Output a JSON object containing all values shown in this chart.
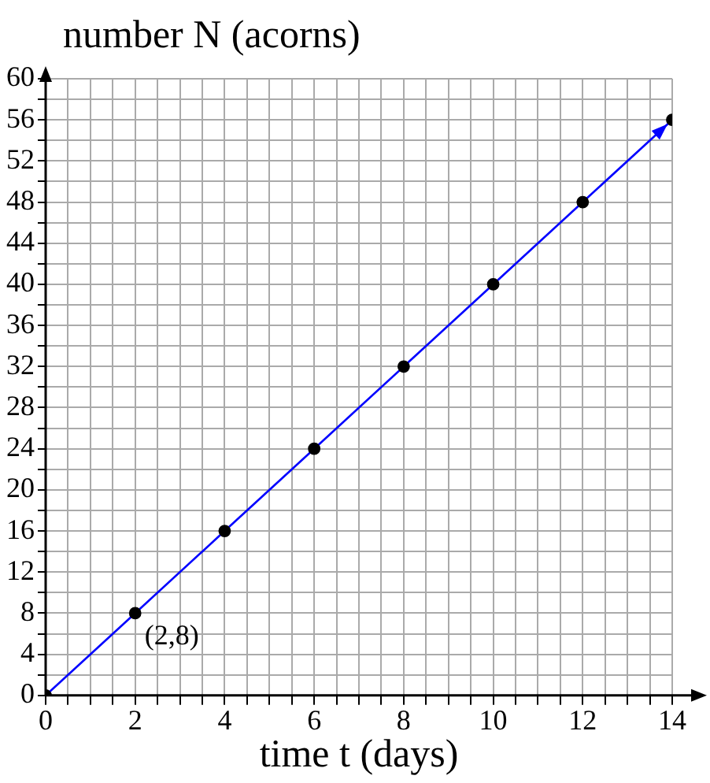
{
  "chart_data": {
    "type": "line",
    "ylabel": "number N (acorns)",
    "xlabel": "time t (days)",
    "x": [
      0,
      2,
      4,
      6,
      8,
      10,
      12,
      14
    ],
    "series": [
      {
        "color": "#0000ff",
        "values": [
          0,
          8,
          16,
          24,
          32,
          40,
          48,
          56
        ]
      }
    ],
    "xlim": [
      0,
      14
    ],
    "ylim": [
      0,
      60
    ],
    "xticks": [
      0,
      {
        "value": 0.5,
        "label": null
      },
      {
        "value": 1,
        "label": null
      },
      {
        "value": 1.5,
        "label": null
      },
      2,
      {
        "value": 2.5,
        "label": null
      },
      {
        "value": 3,
        "label": null
      },
      {
        "value": 3.5,
        "label": null
      },
      4,
      {
        "value": 4.5,
        "label": null
      },
      {
        "value": 5,
        "label": null
      },
      {
        "value": 5.5,
        "label": null
      },
      6,
      {
        "value": 6.5,
        "label": null
      },
      {
        "value": 7,
        "label": null
      },
      {
        "value": 7.5,
        "label": null
      },
      8,
      {
        "value": 8.5,
        "label": null
      },
      {
        "value": 9,
        "label": null
      },
      {
        "value": 9.5,
        "label": null
      },
      10,
      {
        "value": 10.5,
        "label": null
      },
      {
        "value": 11,
        "label": null
      },
      {
        "value": 11.5,
        "label": null
      },
      12,
      {
        "value": 12.5,
        "label": null
      },
      {
        "value": 13,
        "label": null
      },
      {
        "value": 13.5,
        "label": null
      },
      14
    ],
    "yticks": [
      0,
      {
        "value": 2,
        "label": null
      },
      4,
      {
        "value": 6,
        "label": null
      },
      8,
      {
        "value": 10,
        "label": null
      },
      12,
      {
        "value": 14,
        "label": null
      },
      16,
      {
        "value": 18,
        "label": null
      },
      20,
      {
        "value": 22,
        "label": null
      },
      24,
      {
        "value": 26,
        "label": null
      },
      28,
      {
        "value": 30,
        "label": null
      },
      32,
      {
        "value": 34,
        "label": null
      },
      36,
      {
        "value": 38,
        "label": null
      },
      40,
      {
        "value": 42,
        "label": null
      },
      44,
      {
        "value": 46,
        "label": null
      },
      48,
      {
        "value": 50,
        "label": null
      },
      52,
      {
        "value": 54,
        "label": null
      },
      56,
      {
        "value": 58,
        "label": null
      },
      60
    ],
    "annotations": [
      {
        "text": "(2,8)",
        "x": 2,
        "y": 8
      }
    ],
    "grid": true,
    "marker": "circle",
    "line_style": "solid",
    "legend": false
  }
}
